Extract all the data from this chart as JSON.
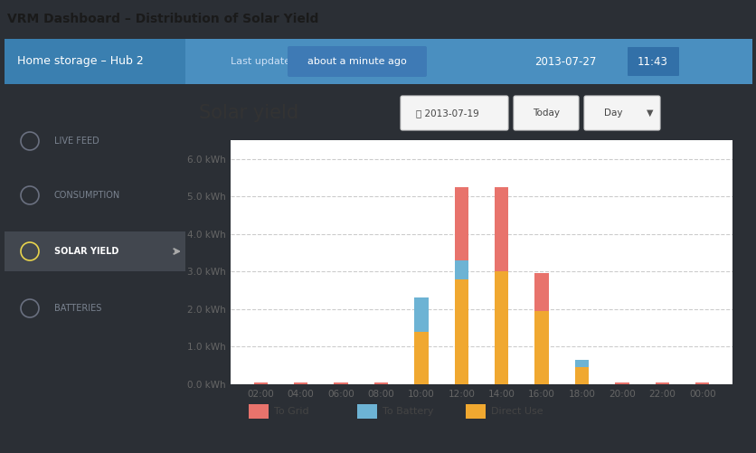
{
  "title": "VRM Dashboard – Distribution of Solar Yield",
  "header_bg": "#4a8fc0",
  "header_left_bg": "#3a7fb0",
  "header_text": "Home storage – Hub 2",
  "header_update_label": "Last update",
  "header_update_value": "about a minute ago",
  "header_datetime": "2013-07-27",
  "header_time": "11:43",
  "sidebar_bg": "#383d45",
  "sidebar_active_bg": "#42474f",
  "sidebar_items": [
    "LIVE FEED",
    "CONSUMPTION",
    "SOLAR YIELD",
    "BATTERIES"
  ],
  "sidebar_active": "SOLAR YIELD",
  "chart_bg": "#ffffff",
  "chart_title": "Solar yield",
  "chart_date": "2013-07-19",
  "chart_btn1": "Today",
  "chart_btn2": "Day",
  "x_labels": [
    "02:00",
    "04:00",
    "06:00",
    "08:00",
    "10:00",
    "12:00",
    "14:00",
    "16:00",
    "18:00",
    "20:00",
    "22:00",
    "00:00"
  ],
  "x_positions": [
    2,
    4,
    6,
    8,
    10,
    12,
    14,
    16,
    18,
    20,
    22,
    24
  ],
  "to_grid": [
    0.05,
    0.05,
    0.05,
    0.05,
    0.0,
    1.95,
    2.25,
    1.0,
    0.0,
    0.05,
    0.05,
    0.05
  ],
  "to_battery": [
    0.0,
    0.0,
    0.0,
    0.0,
    0.9,
    0.5,
    0.0,
    0.0,
    0.2,
    0.0,
    0.0,
    0.0
  ],
  "direct_use": [
    0.0,
    0.0,
    0.0,
    0.0,
    1.4,
    2.8,
    3.0,
    1.95,
    0.45,
    0.0,
    0.0,
    0.0
  ],
  "color_grid": "#e8736c",
  "color_battery": "#6db3d4",
  "color_direct": "#f0a830",
  "ylim": [
    0,
    6.5
  ],
  "yticks": [
    0.0,
    1.0,
    2.0,
    3.0,
    4.0,
    5.0,
    6.0
  ],
  "ytick_labels": [
    "0.0 kWh",
    "1.0 kWh",
    "2.0 kWh",
    "3.0 kWh",
    "4.0 kWh",
    "5.0 kWh",
    "6.0 kWh"
  ],
  "legend_labels": [
    "To Grid",
    "To Battery",
    "Direct Use"
  ],
  "outer_bg": "#2b2f35",
  "title_bg": "#ffffff",
  "main_panel_bg": "#ffffff"
}
